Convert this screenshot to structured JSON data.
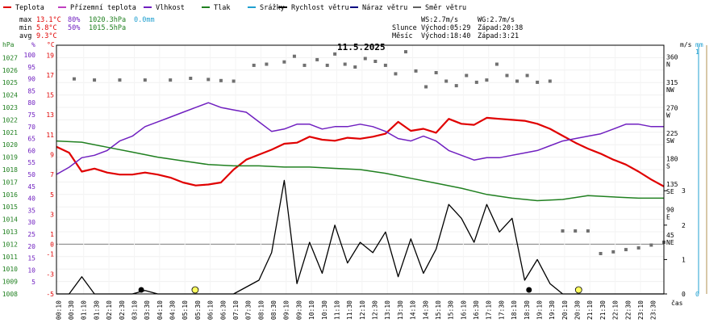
{
  "chart_data": {
    "type": "line",
    "title": "11.5.2025",
    "legend": [
      {
        "name": "Teplota",
        "color": "#e00000"
      },
      {
        "name": "Přízemní teplota",
        "color": "#c040c0"
      },
      {
        "name": "Vlhkost",
        "color": "#7020c0"
      },
      {
        "name": "Tlak",
        "color": "#208020"
      },
      {
        "name": "Srážky",
        "color": "#20a0d0"
      },
      {
        "name": "Rychlost větru",
        "color": "#000000"
      },
      {
        "name": "Náraz větru",
        "color": "#000080"
      },
      {
        "name": "Směr větru",
        "color": "#606060"
      }
    ],
    "stats": {
      "max_label": "max",
      "max_temp": "13.1°C",
      "max_hum": "80%",
      "max_press": "1020.3hPa",
      "max_rain": "0.0mm",
      "min_label": "min",
      "min_temp": "5.8°C",
      "min_hum": "50%",
      "min_press": "1015.5hPa",
      "avg_label": "avg",
      "avg_temp": "9.3°C"
    },
    "info": {
      "ws": "WS:2.7m/s",
      "wg": "WG:2.7m/s",
      "slunce_label": "Slunce",
      "slunce_rise": "Východ:05:29",
      "slunce_set": "Západ:20:38",
      "mesic_label": "Měsíc",
      "mesic_rise": "Východ:18:40",
      "mesic_set": "Západ:3:21"
    },
    "axis_titles": {
      "hpa": "hPa",
      "pct": "%",
      "degc": "°C",
      "ms": "m/s",
      "mm": "mm",
      "time": "čas"
    },
    "pressure_ticks": [
      "1027",
      "1026",
      "1025",
      "1024",
      "1023",
      "1022",
      "1021",
      "1020",
      "1019",
      "1018",
      "1017",
      "1016",
      "1015",
      "1014",
      "1013",
      "1012",
      "1011",
      "1010",
      "1009",
      "1008"
    ],
    "humidity_ticks": [
      "100",
      "95",
      "90",
      "85",
      "80",
      "75",
      "70",
      "65",
      "60",
      "55",
      "50",
      "45",
      "40",
      "35",
      "30",
      "25",
      "20",
      "15",
      "10",
      "5"
    ],
    "temp_ticks": [
      "19",
      "17",
      "15",
      "13",
      "11",
      "9",
      "7",
      "5",
      "3",
      "1",
      "-1",
      "-3",
      "-5"
    ],
    "temp_zero_label": "0",
    "wind_deg_ticks": [
      "360",
      "315",
      "270",
      "225",
      "180",
      "135",
      "90",
      "45"
    ],
    "wind_dir_ticks": [
      "N",
      "NW",
      "W",
      "SW",
      "S",
      "SE",
      "E",
      "NE"
    ],
    "wind_speed_ticks": [
      "3",
      "2",
      "1",
      "0"
    ],
    "rain_ticks": [
      "1",
      "0"
    ],
    "time_ticks": [
      "00:10",
      "00:30",
      "01:10",
      "01:30",
      "02:10",
      "02:30",
      "03:10",
      "03:30",
      "04:10",
      "04:30",
      "05:10",
      "05:30",
      "06:10",
      "06:30",
      "07:10",
      "07:30",
      "08:10",
      "08:30",
      "09:10",
      "09:30",
      "10:10",
      "10:30",
      "11:10",
      "11:30",
      "12:10",
      "12:30",
      "13:10",
      "13:30",
      "14:10",
      "14:30",
      "15:10",
      "15:30",
      "16:10",
      "16:30",
      "17:10",
      "17:30",
      "18:10",
      "18:30",
      "19:10",
      "19:30",
      "20:10",
      "20:30",
      "21:10",
      "21:30",
      "22:10",
      "22:30",
      "23:10",
      "23:30"
    ],
    "series": [
      {
        "name": "Teplota",
        "unit": "°C",
        "x_hours": [
          0,
          0.5,
          1,
          1.5,
          2,
          2.5,
          3,
          3.5,
          4,
          4.5,
          5,
          5.5,
          6,
          6.5,
          7,
          7.5,
          8,
          8.5,
          9,
          9.5,
          10,
          10.5,
          11,
          11.5,
          12,
          12.5,
          13,
          13.5,
          14,
          14.5,
          15,
          15.5,
          16,
          16.5,
          17,
          17.5,
          18,
          18.5,
          19,
          19.5,
          20,
          20.5,
          21,
          21.5,
          22,
          22.5,
          23,
          23.5,
          24
        ],
        "values": [
          9.8,
          9.2,
          7.3,
          7.6,
          7.2,
          7.0,
          7.0,
          7.2,
          7.0,
          6.7,
          6.2,
          5.9,
          6.0,
          6.2,
          7.5,
          8.5,
          9.0,
          9.5,
          10.1,
          10.2,
          10.8,
          10.5,
          10.4,
          10.7,
          10.6,
          10.8,
          11.1,
          12.3,
          11.4,
          11.6,
          11.2,
          12.6,
          12.1,
          12.0,
          12.7,
          12.6,
          12.5,
          12.4,
          12.1,
          11.6,
          10.9,
          10.2,
          9.6,
          9.1,
          8.5,
          8.0,
          7.3,
          6.5,
          5.8
        ]
      },
      {
        "name": "Vlhkost",
        "unit": "%",
        "x_hours": [
          0,
          0.5,
          1,
          1.5,
          2,
          2.5,
          3,
          3.5,
          4,
          4.5,
          5,
          5.5,
          6,
          6.5,
          7,
          7.5,
          8,
          8.5,
          9,
          9.5,
          10,
          10.5,
          11,
          11.5,
          12,
          12.5,
          13,
          13.5,
          14,
          14.5,
          15,
          15.5,
          16,
          16.5,
          17,
          17.5,
          18,
          18.5,
          19,
          19.5,
          20,
          20.5,
          21,
          21.5,
          22,
          22.5,
          23,
          23.5,
          24
        ],
        "values": [
          50,
          53,
          57,
          58,
          60,
          64,
          66,
          70,
          72,
          74,
          76,
          78,
          80,
          78,
          77,
          76,
          72,
          68,
          69,
          71,
          71,
          69,
          70,
          70,
          71,
          70,
          68,
          65,
          64,
          66,
          64,
          60,
          58,
          56,
          57,
          57,
          58,
          59,
          60,
          62,
          64,
          65,
          66,
          67,
          69,
          71,
          71,
          70,
          70
        ]
      },
      {
        "name": "Tlak",
        "unit": "hPa",
        "x_hours": [
          0,
          1,
          2,
          3,
          4,
          5,
          6,
          7,
          8,
          9,
          10,
          11,
          12,
          13,
          14,
          15,
          16,
          17,
          18,
          19,
          20,
          21,
          22,
          23,
          24
        ],
        "values": [
          1020.3,
          1020.2,
          1019.8,
          1019.4,
          1019.0,
          1018.7,
          1018.4,
          1018.3,
          1018.3,
          1018.2,
          1018.2,
          1018.1,
          1018.0,
          1017.7,
          1017.3,
          1016.9,
          1016.5,
          1016.0,
          1015.7,
          1015.5,
          1015.6,
          1015.9,
          1015.8,
          1015.7,
          1015.7
        ]
      },
      {
        "name": "Rychlost větru",
        "unit": "m/s",
        "x_hours": [
          0,
          0.5,
          1,
          1.5,
          2,
          2.5,
          3,
          3.5,
          4,
          4.5,
          5,
          5.5,
          6,
          6.5,
          7,
          7.5,
          8,
          8.5,
          9,
          9.5,
          10,
          10.5,
          11,
          11.5,
          12,
          12.5,
          13,
          13.5,
          14,
          14.5,
          15,
          15.5,
          16,
          16.5,
          17,
          17.5,
          18,
          18.5,
          19,
          19.5,
          20,
          20.5,
          21,
          21.5,
          22,
          22.5,
          23,
          23.5,
          24
        ],
        "values": [
          0,
          0,
          0.5,
          0,
          0,
          0,
          0,
          0.1,
          0,
          0,
          0,
          0,
          0,
          0,
          0,
          0.2,
          0.4,
          1.2,
          3.3,
          0.3,
          1.5,
          0.6,
          2.0,
          0.9,
          1.5,
          1.2,
          1.8,
          0.5,
          1.6,
          0.6,
          1.3,
          2.6,
          2.2,
          1.5,
          2.6,
          1.8,
          2.2,
          0.4,
          1.0,
          0.3,
          0,
          0,
          0,
          0,
          0,
          0,
          0,
          0,
          0
        ]
      },
      {
        "name": "Směr větru",
        "unit": "°",
        "x_hours": [
          0.7,
          1.5,
          2.5,
          3.5,
          4.5,
          5.3,
          6.0,
          6.5,
          7.0,
          7.8,
          8.3,
          9.0,
          9.4,
          9.8,
          10.3,
          10.7,
          11.0,
          11.4,
          11.8,
          12.2,
          12.6,
          13.0,
          13.4,
          13.8,
          14.2,
          14.6,
          15.0,
          15.4,
          15.8,
          16.2,
          16.6,
          17.0,
          17.4,
          17.8,
          18.2,
          18.6,
          19.0,
          19.5,
          20.0,
          20.5,
          21.0,
          21.5,
          22.0,
          22.5,
          23.0,
          23.5,
          24.0
        ],
        "values": [
          324,
          322,
          322,
          322,
          322,
          325,
          323,
          321,
          320,
          348,
          350,
          354,
          364,
          348,
          358,
          348,
          368,
          350,
          345,
          360,
          355,
          348,
          333,
          372,
          338,
          310,
          335,
          320,
          312,
          330,
          318,
          322,
          350,
          330,
          320,
          330,
          318,
          320,
          55,
          55,
          55,
          15,
          18,
          22,
          25,
          30,
          35
        ]
      }
    ]
  }
}
